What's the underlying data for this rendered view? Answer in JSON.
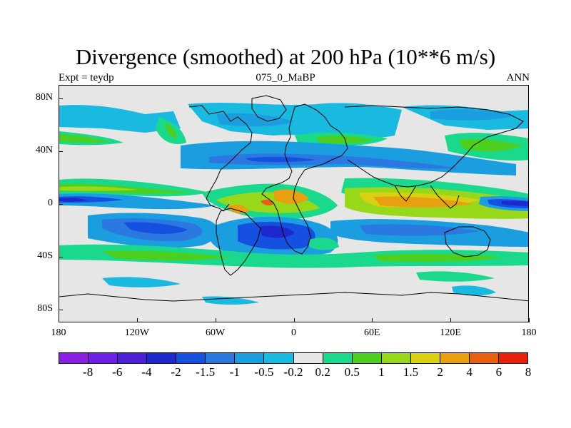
{
  "title": "Divergence (smoothed) at 200 hPa (10**6 m/s)",
  "subtitle_left": "Expt = teydp",
  "subtitle_center": "075_0_MaBP",
  "subtitle_right": "ANN",
  "map": {
    "projection": "cylindrical-equidistant",
    "lon_range": [
      -180,
      180
    ],
    "lat_range": [
      -90,
      90
    ],
    "y_ticks": [
      {
        "label": "80N",
        "lat": 80
      },
      {
        "label": "40N",
        "lat": 40
      },
      {
        "label": "0",
        "lat": 0
      },
      {
        "label": "40S",
        "lat": -40
      },
      {
        "label": "80S",
        "lat": -80
      }
    ],
    "x_ticks": [
      {
        "label": "180",
        "lon": -180
      },
      {
        "label": "120W",
        "lon": -120
      },
      {
        "label": "60W",
        "lon": -60
      },
      {
        "label": "0",
        "lon": 0
      },
      {
        "label": "60E",
        "lon": 60
      },
      {
        "label": "120E",
        "lon": 120
      },
      {
        "label": "180",
        "lon": 180
      }
    ],
    "background_color": "#e6e6e6"
  },
  "colorbar": {
    "colors": [
      "#8b1fe6",
      "#6f1fe6",
      "#4d1fd9",
      "#1e28cc",
      "#1550e0",
      "#2a78e0",
      "#1a9ee0",
      "#1ab9e0",
      "#e6e6e6",
      "#1ad98c",
      "#4ccf1e",
      "#98d81a",
      "#d8d010",
      "#e8a010",
      "#e86010",
      "#e8200e"
    ],
    "labels": [
      "-8",
      "-6",
      "-4",
      "-2",
      "-1.5",
      "-1",
      "-0.5",
      "-0.2",
      "0.2",
      "0.5",
      "1",
      "1.5",
      "2",
      "4",
      "6",
      "8"
    ]
  }
}
